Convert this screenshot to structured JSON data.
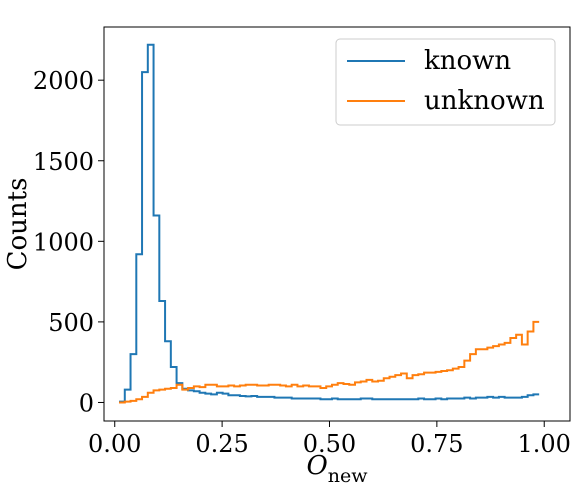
{
  "chart_data": {
    "type": "histogram",
    "xlabel_main": "O",
    "xlabel_sub": "new",
    "ylabel": "Counts",
    "xlim": [
      -0.025,
      1.06
    ],
    "ylim": [
      -115,
      2330
    ],
    "xticks": [
      0.0,
      0.25,
      0.5,
      0.75,
      1.0
    ],
    "xtick_labels": [
      "0.00",
      "0.25",
      "0.50",
      "0.75",
      "1.00"
    ],
    "yticks": [
      0,
      500,
      1000,
      1500,
      2000
    ],
    "ytick_labels": [
      "0",
      "500",
      "1000",
      "1500",
      "2000"
    ],
    "legend_position": "top-right",
    "bin_edges_start": 0.01,
    "bin_width": 0.0134,
    "series": [
      {
        "name": "known",
        "color": "#1f77b4",
        "values": [
          5,
          80,
          300,
          920,
          2050,
          2220,
          1160,
          630,
          380,
          220,
          120,
          85,
          75,
          70,
          60,
          55,
          50,
          60,
          55,
          45,
          45,
          40,
          38,
          40,
          35,
          35,
          35,
          30,
          30,
          30,
          25,
          25,
          25,
          25,
          25,
          20,
          20,
          25,
          20,
          20,
          20,
          20,
          25,
          25,
          20,
          20,
          20,
          20,
          20,
          20,
          20,
          20,
          25,
          20,
          20,
          25,
          20,
          25,
          25,
          25,
          30,
          25,
          30,
          30,
          35,
          30,
          35,
          30,
          30,
          30,
          35,
          45,
          50
        ]
      },
      {
        "name": "unknown",
        "color": "#ff7f0e",
        "values": [
          0,
          5,
          10,
          20,
          35,
          60,
          75,
          80,
          85,
          90,
          110,
          80,
          90,
          100,
          95,
          110,
          110,
          100,
          100,
          105,
          100,
          105,
          110,
          110,
          105,
          105,
          110,
          110,
          105,
          100,
          110,
          100,
          105,
          100,
          100,
          90,
          100,
          110,
          120,
          115,
          110,
          125,
          130,
          140,
          130,
          135,
          150,
          160,
          170,
          180,
          150,
          170,
          175,
          185,
          185,
          190,
          195,
          200,
          210,
          220,
          260,
          300,
          330,
          330,
          340,
          350,
          360,
          370,
          400,
          420,
          360,
          440,
          500
        ]
      }
    ]
  }
}
